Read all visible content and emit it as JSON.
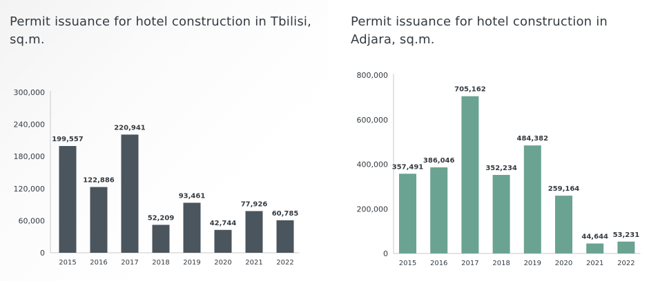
{
  "chart_data": [
    {
      "type": "bar",
      "title": "Permit issuance for hotel construction in Tbilisi, sq.m.",
      "categories": [
        "2015",
        "2016",
        "2017",
        "2018",
        "2019",
        "2020",
        "2021",
        "2022"
      ],
      "values": [
        199557,
        122886,
        220941,
        52209,
        93461,
        42744,
        77926,
        60785
      ],
      "value_labels": [
        "199,557",
        "122,886",
        "220,941",
        "52,209",
        "93,461",
        "42,744",
        "77,926",
        "60,785"
      ],
      "yticks": [
        0,
        60000,
        120000,
        180000,
        240000,
        300000
      ],
      "ytick_labels": [
        "0",
        "60,000",
        "120,000",
        "180,000",
        "240,000",
        "300,000"
      ],
      "ylim": [
        0,
        300000
      ],
      "xlabel": "",
      "ylabel": "",
      "color": "#4a555e"
    },
    {
      "type": "bar",
      "title": "Permit issuance for hotel construction in Adjara, sq.m.",
      "categories": [
        "2015",
        "2016",
        "2017",
        "2018",
        "2019",
        "2020",
        "2021",
        "2022"
      ],
      "values": [
        357491,
        386046,
        705162,
        352234,
        484382,
        259164,
        44644,
        53231
      ],
      "value_labels": [
        "357,491",
        "386,046",
        "705,162",
        "352,234",
        "484,382",
        "259,164",
        "44,644",
        "53,231"
      ],
      "yticks": [
        0,
        200000,
        400000,
        600000,
        800000
      ],
      "ytick_labels": [
        "0",
        "200,000",
        "400,000",
        "600,000",
        "800,000"
      ],
      "ylim": [
        0,
        800000
      ],
      "xlabel": "",
      "ylabel": "",
      "color": "#6aa391"
    }
  ]
}
